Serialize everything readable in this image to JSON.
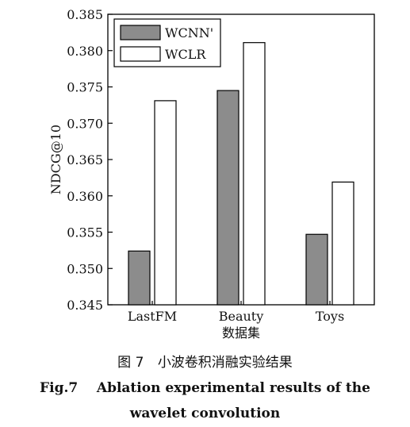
{
  "chart_data": {
    "type": "bar",
    "categories": [
      "LastFM",
      "Beauty",
      "Toys"
    ],
    "series": [
      {
        "name": "WCNN'",
        "values": [
          0.3524,
          0.3745,
          0.3547
        ],
        "color": "#8c8c8c"
      },
      {
        "name": "WCLR",
        "values": [
          0.3731,
          0.3811,
          0.3619
        ],
        "color": "#ffffff"
      }
    ],
    "xlabel": "数据集",
    "ylabel": "NDCG@10",
    "ylim": [
      0.345,
      0.385
    ],
    "yticks": [
      "0.345",
      "0.350",
      "0.355",
      "0.360",
      "0.365",
      "0.370",
      "0.375",
      "0.380",
      "0.385"
    ],
    "grid": false,
    "legend": "top-left"
  },
  "caption": {
    "cn_label": "图 7",
    "cn_title": "小波卷积消融实验结果",
    "en_line1": "Fig.7    Ablation experimental results of the",
    "en_line2": "wavelet convolution"
  }
}
